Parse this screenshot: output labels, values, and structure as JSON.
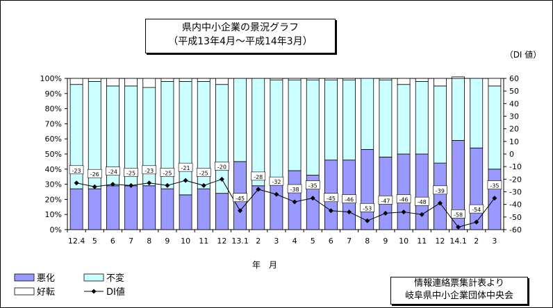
{
  "chart_data": {
    "type": "bar",
    "title": "県内中小企業の景況グラフ",
    "subtitle": "（平成13年4月～平成14年3月）",
    "right_axis_label": "（DI 値）",
    "xlabel": "年　月",
    "categories": [
      "12.4",
      "5",
      "6",
      "7",
      "8",
      "9",
      "10",
      "11",
      "12",
      "13.1",
      "2",
      "3",
      "4",
      "5",
      "6",
      "7",
      "8",
      "9",
      "10",
      "11",
      "12",
      "14.1",
      "2",
      "3"
    ],
    "left_ylim": [
      0,
      100
    ],
    "left_ticks": [
      "0%",
      "10%",
      "20%",
      "30%",
      "40%",
      "50%",
      "60%",
      "70%",
      "80%",
      "90%",
      "100%"
    ],
    "right_ylim": [
      -60,
      60
    ],
    "right_ticks": [
      "-60",
      "-50",
      "-40",
      "-30",
      "-20",
      "-10",
      "0",
      "10",
      "20",
      "30",
      "40",
      "50",
      "60"
    ],
    "series": [
      {
        "name": "悪化",
        "values": [
          27,
          27,
          29,
          29,
          29,
          27,
          23,
          27,
          24,
          45,
          29,
          33,
          39,
          36,
          46,
          46,
          53,
          48,
          50,
          50,
          44,
          59,
          54,
          40
        ],
        "color": "#9999ff"
      },
      {
        "name": "不変",
        "values": [
          69,
          71,
          66,
          66,
          65,
          71,
          75,
          71,
          72,
          55,
          71,
          66,
          60,
          63,
          53,
          53,
          47,
          51,
          46,
          48,
          51,
          41,
          46,
          55
        ],
        "color": "#ccffff"
      },
      {
        "name": "好転",
        "values": [
          4,
          2,
          5,
          5,
          6,
          2,
          2,
          2,
          4,
          0,
          0,
          1,
          1,
          1,
          1,
          1,
          0,
          1,
          4,
          2,
          5,
          1,
          0,
          5
        ],
        "color": "#ffffff"
      }
    ],
    "line": {
      "name": "DI値",
      "values": [
        -23,
        -26,
        -24,
        -25,
        -23,
        -25,
        -21,
        -25,
        -20,
        -45,
        -28,
        -32,
        -38,
        -35,
        -45,
        -46,
        -53,
        -47,
        -46,
        -48,
        -39,
        -58,
        -54,
        -35
      ]
    },
    "legend": [
      "悪化",
      "不変",
      "好転",
      "DI値"
    ],
    "grid": false
  },
  "source_note": [
    "情報連絡票集計表より",
    "岐阜県中小企業団体中央会"
  ]
}
